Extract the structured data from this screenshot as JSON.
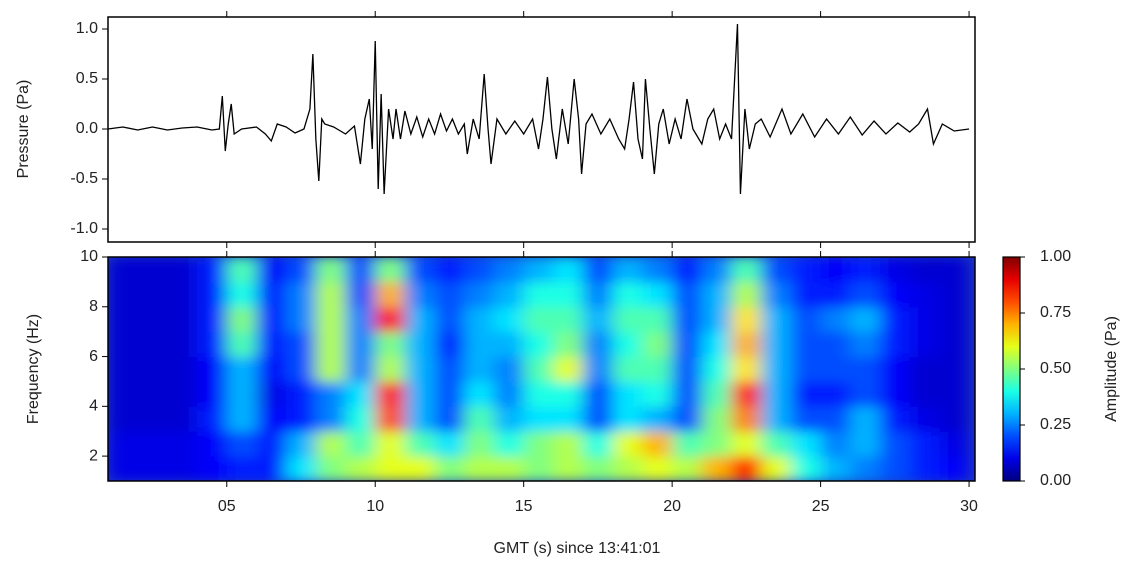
{
  "chart_data": [
    {
      "type": "line",
      "ylabel": "Pressure (Pa)",
      "color": "#000000",
      "xlim": [
        1,
        30.2
      ],
      "ylim": [
        -1.13,
        1.12
      ],
      "yticks": [
        {
          "value": -1,
          "label": "-1.0"
        },
        -0.5,
        {
          "value": 0,
          "label": "0.0"
        },
        0.5,
        {
          "value": 1,
          "label": "1.0"
        }
      ],
      "x": [
        1.0,
        1.5,
        2.0,
        2.5,
        3.0,
        3.5,
        4.0,
        4.5,
        4.75,
        4.85,
        4.95,
        5.05,
        5.15,
        5.25,
        5.5,
        6.0,
        6.3,
        6.5,
        6.7,
        7.0,
        7.3,
        7.6,
        7.8,
        7.9,
        8.0,
        8.1,
        8.2,
        8.3,
        8.6,
        9.0,
        9.3,
        9.5,
        9.65,
        9.8,
        9.9,
        10.0,
        10.1,
        10.2,
        10.3,
        10.45,
        10.6,
        10.7,
        10.85,
        11.0,
        11.2,
        11.4,
        11.6,
        11.8,
        12.0,
        12.2,
        12.4,
        12.6,
        12.8,
        13.0,
        13.1,
        13.3,
        13.5,
        13.67,
        13.8,
        13.9,
        14.1,
        14.4,
        14.7,
        15.0,
        15.3,
        15.5,
        15.65,
        15.8,
        15.95,
        16.1,
        16.3,
        16.5,
        16.7,
        16.85,
        16.95,
        17.1,
        17.3,
        17.6,
        17.9,
        18.2,
        18.4,
        18.55,
        18.7,
        18.85,
        19.0,
        19.1,
        19.25,
        19.4,
        19.55,
        19.7,
        19.9,
        20.1,
        20.3,
        20.5,
        20.7,
        21.0,
        21.2,
        21.4,
        21.6,
        21.8,
        22.0,
        22.2,
        22.3,
        22.45,
        22.6,
        22.8,
        23.0,
        23.3,
        23.7,
        24.0,
        24.4,
        24.8,
        25.2,
        25.6,
        26.0,
        26.4,
        26.8,
        27.2,
        27.6,
        28.0,
        28.3,
        28.6,
        28.8,
        29.1,
        29.5,
        30.0
      ],
      "values": [
        0.0,
        0.02,
        -0.01,
        0.02,
        -0.01,
        0.01,
        0.02,
        -0.01,
        0.0,
        0.33,
        -0.22,
        0.05,
        0.25,
        -0.05,
        0.0,
        0.02,
        -0.05,
        -0.12,
        0.05,
        0.02,
        -0.04,
        0.0,
        0.2,
        0.75,
        -0.1,
        -0.52,
        0.1,
        0.05,
        0.02,
        -0.05,
        0.03,
        -0.35,
        0.1,
        0.3,
        -0.2,
        0.88,
        -0.6,
        0.35,
        -0.65,
        0.2,
        -0.1,
        0.2,
        -0.1,
        0.18,
        -0.05,
        0.12,
        -0.08,
        0.1,
        -0.05,
        0.15,
        -0.02,
        0.1,
        -0.05,
        0.05,
        -0.25,
        0.1,
        -0.1,
        0.55,
        0.0,
        -0.35,
        0.1,
        -0.05,
        0.08,
        -0.05,
        0.1,
        -0.2,
        0.1,
        0.52,
        0.0,
        -0.3,
        0.2,
        -0.15,
        0.5,
        0.1,
        -0.45,
        0.05,
        0.15,
        -0.05,
        0.1,
        -0.1,
        -0.2,
        0.1,
        0.47,
        -0.1,
        -0.3,
        0.5,
        0.0,
        -0.45,
        0.05,
        0.2,
        -0.15,
        0.1,
        -0.1,
        0.3,
        0.0,
        -0.15,
        0.1,
        0.2,
        -0.1,
        0.05,
        -0.1,
        1.05,
        -0.65,
        0.2,
        -0.2,
        0.05,
        0.1,
        -0.08,
        0.2,
        -0.05,
        0.15,
        -0.08,
        0.1,
        -0.05,
        0.12,
        -0.06,
        0.08,
        -0.05,
        0.06,
        -0.03,
        0.05,
        0.2,
        -0.15,
        0.05,
        -0.02,
        0.0
      ]
    },
    {
      "type": "heatmap",
      "ylabel": "Frequency (Hz)",
      "xlabel": "GMT (s) since 13:41:01",
      "colormap": "jet",
      "xlim": [
        1,
        30.2
      ],
      "ylim": [
        1,
        10
      ],
      "xticks": [
        {
          "value": 5,
          "label": "05"
        },
        10,
        15,
        20,
        25,
        30
      ],
      "yticks": [
        2,
        4,
        6,
        8,
        10
      ],
      "xbins": [
        1,
        2,
        3,
        4,
        5,
        6,
        7,
        8,
        9,
        10,
        11,
        12,
        13,
        14,
        15,
        16,
        17,
        18,
        19,
        20,
        21,
        22,
        23,
        24,
        25,
        26,
        27,
        28,
        29,
        30
      ],
      "ybins": [
        1,
        2,
        3,
        4,
        5,
        6,
        7,
        8,
        9,
        10
      ],
      "z": [
        [
          0.1,
          0.1,
          0.1,
          0.12,
          0.15,
          0.15,
          0.35,
          0.5,
          0.55,
          0.6,
          0.6,
          0.5,
          0.55,
          0.55,
          0.5,
          0.55,
          0.5,
          0.55,
          0.6,
          0.55,
          0.7,
          0.85,
          0.6,
          0.4,
          0.3,
          0.25,
          0.2,
          0.15,
          0.12
        ],
        [
          0.1,
          0.1,
          0.1,
          0.12,
          0.2,
          0.15,
          0.3,
          0.55,
          0.45,
          0.6,
          0.45,
          0.35,
          0.5,
          0.4,
          0.5,
          0.55,
          0.4,
          0.6,
          0.7,
          0.45,
          0.5,
          0.6,
          0.45,
          0.35,
          0.25,
          0.3,
          0.2,
          0.15,
          0.1
        ],
        [
          0.08,
          0.08,
          0.08,
          0.15,
          0.3,
          0.12,
          0.15,
          0.25,
          0.4,
          0.8,
          0.3,
          0.2,
          0.45,
          0.3,
          0.35,
          0.35,
          0.2,
          0.35,
          0.3,
          0.2,
          0.5,
          0.75,
          0.3,
          0.2,
          0.2,
          0.3,
          0.15,
          0.1,
          0.08
        ],
        [
          0.08,
          0.08,
          0.08,
          0.12,
          0.3,
          0.1,
          0.15,
          0.25,
          0.35,
          0.85,
          0.3,
          0.2,
          0.35,
          0.25,
          0.4,
          0.4,
          0.2,
          0.35,
          0.4,
          0.2,
          0.45,
          0.85,
          0.3,
          0.15,
          0.15,
          0.2,
          0.12,
          0.08,
          0.08
        ],
        [
          0.08,
          0.08,
          0.08,
          0.12,
          0.3,
          0.12,
          0.2,
          0.55,
          0.25,
          0.55,
          0.3,
          0.2,
          0.3,
          0.25,
          0.45,
          0.6,
          0.25,
          0.45,
          0.45,
          0.2,
          0.4,
          0.65,
          0.3,
          0.2,
          0.2,
          0.2,
          0.12,
          0.08,
          0.08
        ],
        [
          0.08,
          0.08,
          0.08,
          0.15,
          0.45,
          0.15,
          0.2,
          0.55,
          0.25,
          0.5,
          0.3,
          0.15,
          0.3,
          0.3,
          0.4,
          0.5,
          0.25,
          0.4,
          0.5,
          0.2,
          0.35,
          0.7,
          0.3,
          0.2,
          0.2,
          0.25,
          0.15,
          0.1,
          0.08
        ],
        [
          0.08,
          0.08,
          0.08,
          0.15,
          0.5,
          0.15,
          0.25,
          0.55,
          0.25,
          0.85,
          0.3,
          0.2,
          0.3,
          0.35,
          0.45,
          0.45,
          0.3,
          0.45,
          0.45,
          0.2,
          0.3,
          0.65,
          0.3,
          0.2,
          0.25,
          0.3,
          0.15,
          0.1,
          0.08
        ],
        [
          0.08,
          0.08,
          0.08,
          0.15,
          0.4,
          0.15,
          0.25,
          0.55,
          0.2,
          0.7,
          0.25,
          0.2,
          0.25,
          0.3,
          0.4,
          0.4,
          0.25,
          0.4,
          0.35,
          0.2,
          0.3,
          0.55,
          0.25,
          0.15,
          0.15,
          0.2,
          0.12,
          0.1,
          0.08
        ],
        [
          0.08,
          0.08,
          0.08,
          0.15,
          0.45,
          0.12,
          0.2,
          0.5,
          0.2,
          0.5,
          0.2,
          0.15,
          0.2,
          0.25,
          0.3,
          0.35,
          0.2,
          0.3,
          0.25,
          0.15,
          0.25,
          0.45,
          0.2,
          0.15,
          0.12,
          0.15,
          0.1,
          0.08,
          0.08
        ]
      ],
      "colorbar": {
        "label": "Amplitude (Pa)",
        "lim": [
          0,
          1
        ],
        "ticks": [
          {
            "value": 0,
            "label": "0.00"
          },
          {
            "value": 0.25,
            "label": "0.25"
          },
          {
            "value": 0.5,
            "label": "0.50"
          },
          {
            "value": 0.75,
            "label": "0.75"
          },
          {
            "value": 1,
            "label": "1.00"
          }
        ]
      }
    }
  ]
}
